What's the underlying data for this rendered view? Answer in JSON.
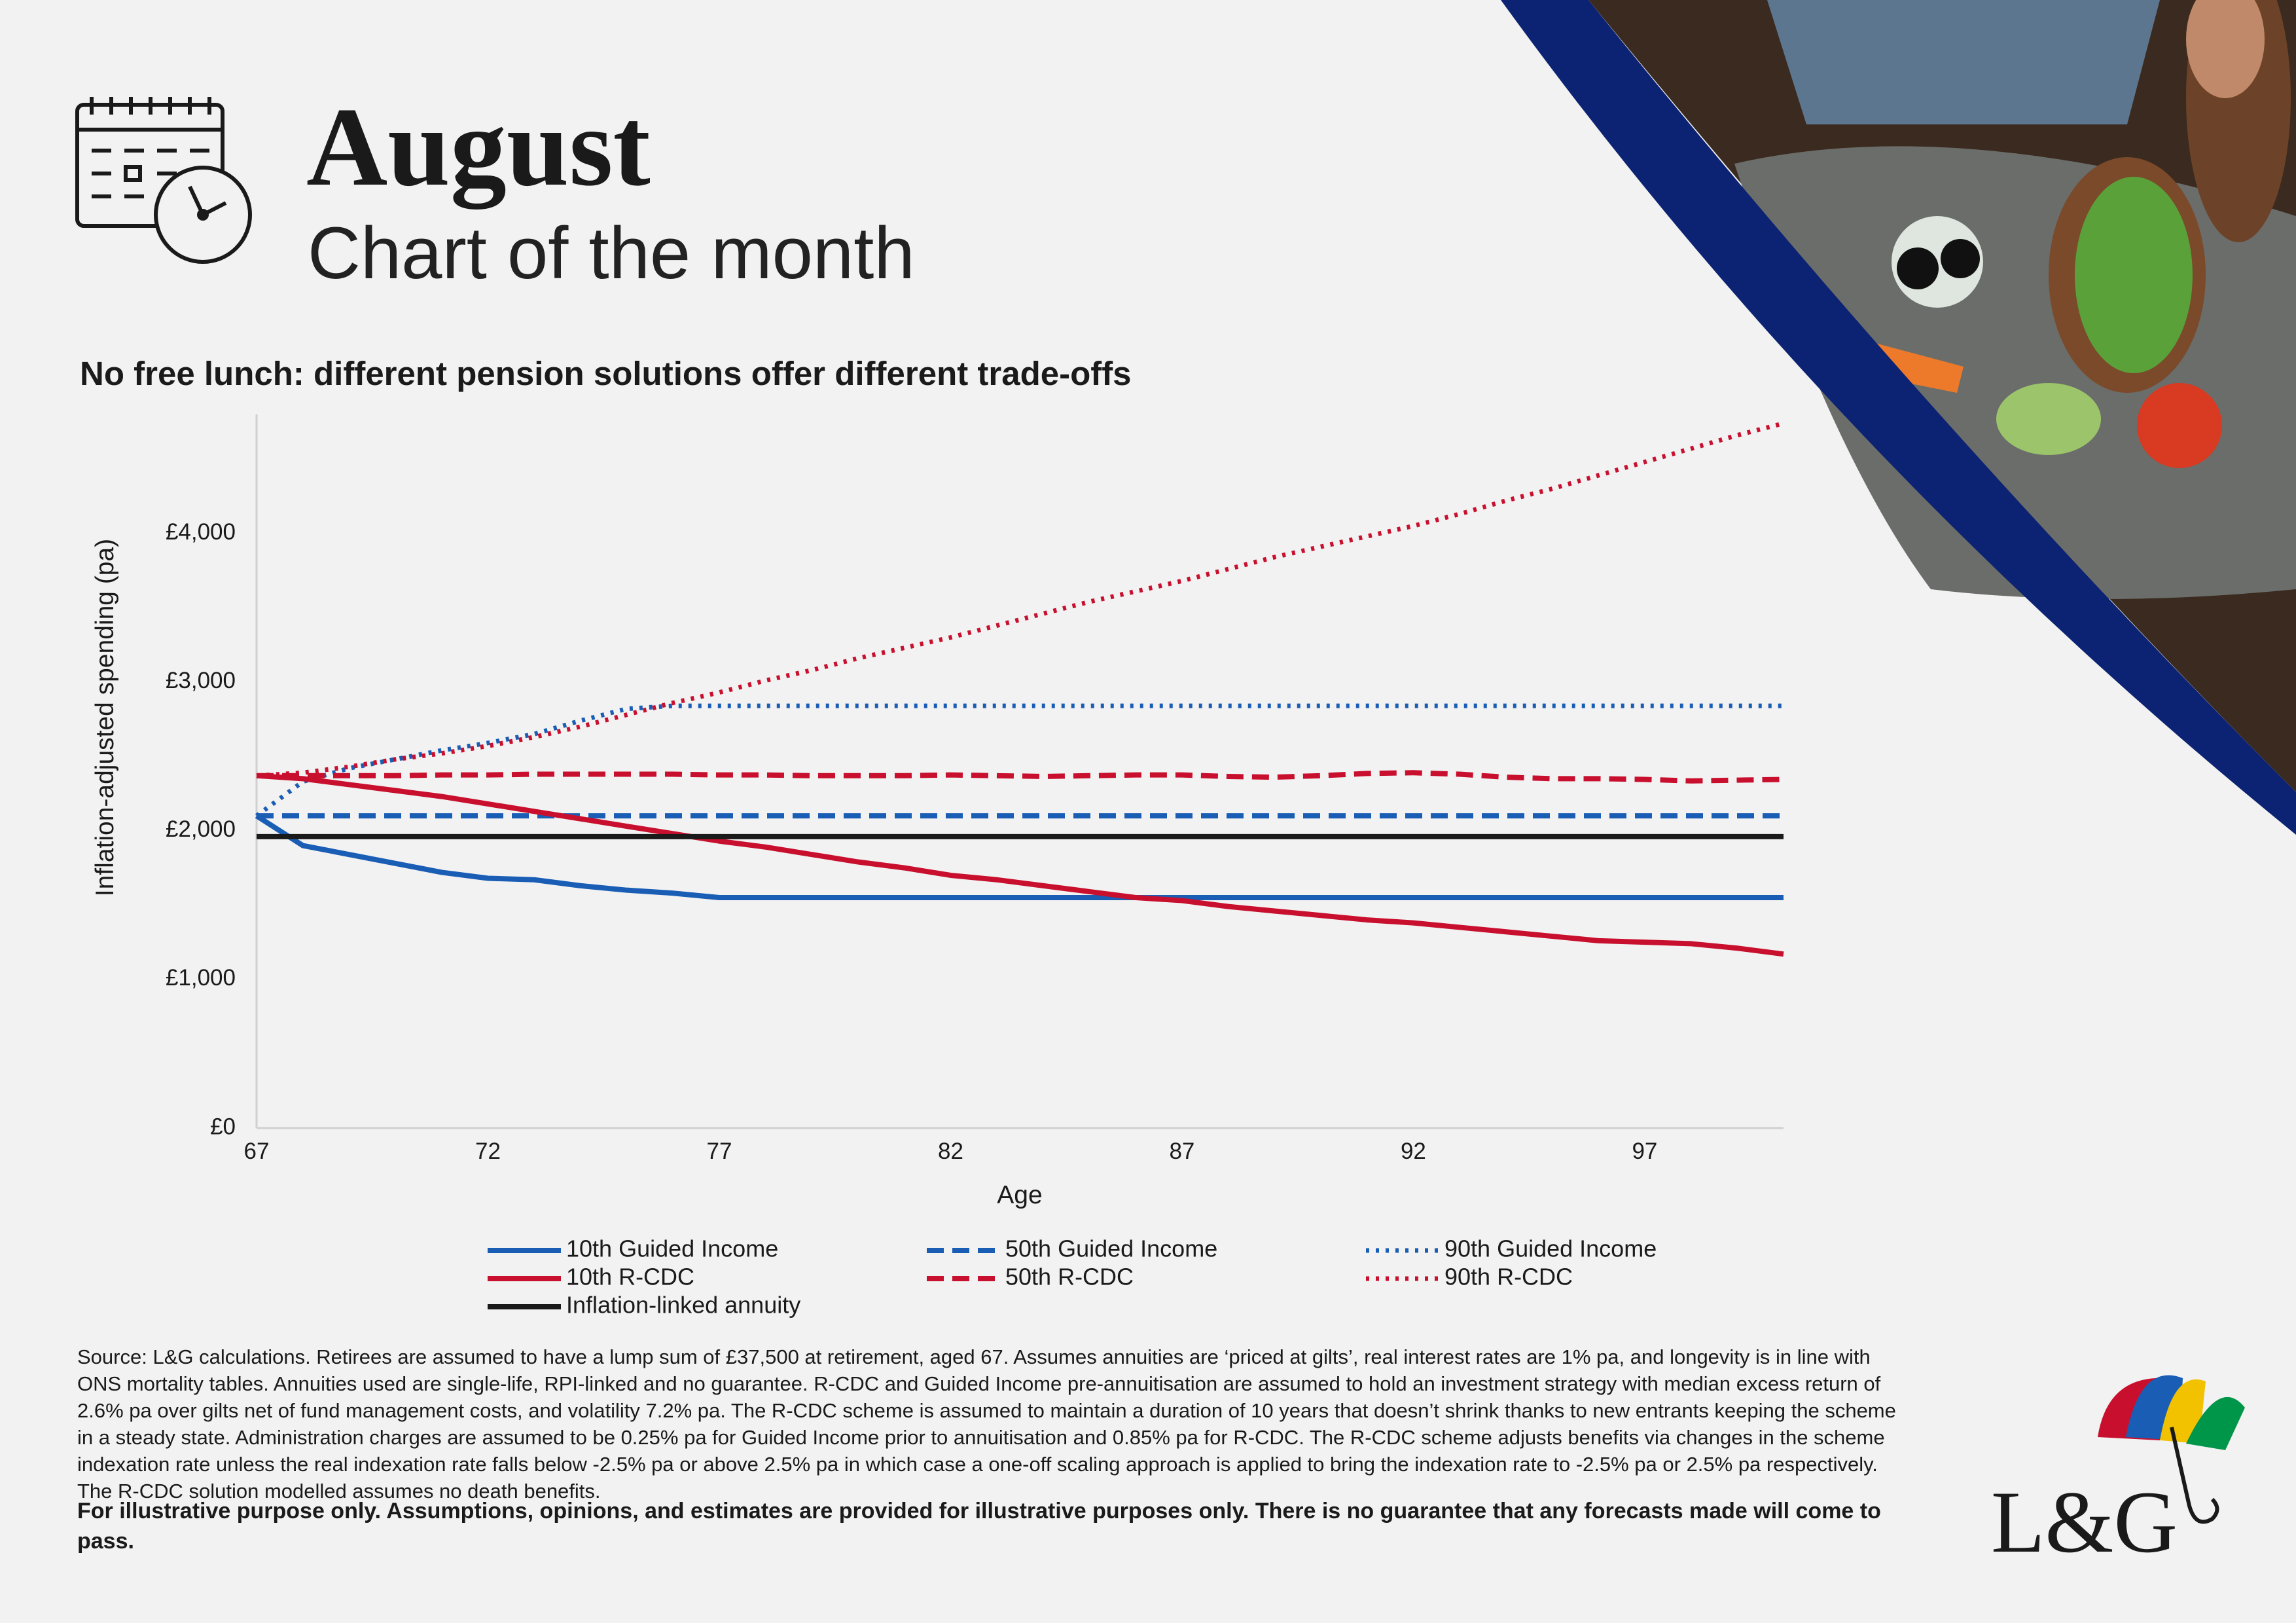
{
  "header": {
    "month": "August",
    "subtitle": "Chart of the month"
  },
  "chart_data": {
    "type": "line",
    "title": "No free lunch: different pension solutions offer different trade-offs",
    "x_label": "Age",
    "y_label": "Inflation-adjusted spending (pa)",
    "x": [
      67,
      68,
      69,
      70,
      71,
      72,
      73,
      74,
      75,
      76,
      77,
      78,
      79,
      80,
      81,
      82,
      83,
      84,
      85,
      86,
      87,
      88,
      89,
      90,
      91,
      92,
      93,
      94,
      95,
      96,
      97,
      98,
      99,
      100
    ],
    "xlim": [
      67,
      100
    ],
    "xticks": [
      67,
      72,
      77,
      82,
      87,
      92,
      97
    ],
    "ylim": [
      0,
      4800
    ],
    "yticks": [
      {
        "value": 0,
        "label": "£0"
      },
      {
        "value": 1000,
        "label": "£1,000"
      },
      {
        "value": 2000,
        "label": "£2,000"
      },
      {
        "value": 3000,
        "label": "£3,000"
      },
      {
        "value": 4000,
        "label": "£4,000"
      }
    ],
    "grid": false,
    "series": [
      {
        "name": "10th Guided Income",
        "color": "#1a5db5",
        "dash": "solid",
        "values": [
          2100,
          1900,
          1840,
          1780,
          1720,
          1680,
          1670,
          1630,
          1600,
          1580,
          1550,
          1550,
          1550,
          1550,
          1550,
          1550,
          1550,
          1550,
          1550,
          1550,
          1550,
          1550,
          1550,
          1550,
          1550,
          1550,
          1550,
          1550,
          1550,
          1550,
          1550,
          1550,
          1550,
          1550
        ]
      },
      {
        "name": "50th Guided Income",
        "color": "#1a5db5",
        "dash": "dashed",
        "values": [
          2100,
          2100,
          2100,
          2100,
          2100,
          2100,
          2100,
          2100,
          2100,
          2100,
          2100,
          2100,
          2100,
          2100,
          2100,
          2100,
          2100,
          2100,
          2100,
          2100,
          2100,
          2100,
          2100,
          2100,
          2100,
          2100,
          2100,
          2100,
          2100,
          2100,
          2100,
          2100,
          2100,
          2100
        ]
      },
      {
        "name": "90th Guided Income",
        "color": "#1a5db5",
        "dash": "dotted",
        "values": [
          2100,
          2330,
          2420,
          2480,
          2540,
          2590,
          2650,
          2740,
          2820,
          2840,
          2840,
          2840,
          2840,
          2840,
          2840,
          2840,
          2840,
          2840,
          2840,
          2840,
          2840,
          2840,
          2840,
          2840,
          2840,
          2840,
          2840,
          2840,
          2840,
          2840,
          2840,
          2840,
          2840,
          2840
        ]
      },
      {
        "name": "10th R-CDC",
        "color": "#c8102e",
        "dash": "solid",
        "values": [
          2370,
          2350,
          2310,
          2270,
          2230,
          2180,
          2130,
          2080,
          2030,
          1980,
          1930,
          1890,
          1840,
          1790,
          1750,
          1700,
          1670,
          1630,
          1590,
          1550,
          1530,
          1490,
          1460,
          1430,
          1400,
          1380,
          1350,
          1320,
          1290,
          1260,
          1250,
          1240,
          1210,
          1170
        ]
      },
      {
        "name": "50th R-CDC",
        "color": "#c8102e",
        "dash": "dashed",
        "values": [
          2370,
          2370,
          2370,
          2370,
          2375,
          2375,
          2380,
          2380,
          2380,
          2380,
          2375,
          2375,
          2370,
          2370,
          2370,
          2375,
          2370,
          2365,
          2370,
          2375,
          2375,
          2365,
          2360,
          2370,
          2385,
          2390,
          2380,
          2360,
          2350,
          2350,
          2345,
          2335,
          2340,
          2345
        ]
      },
      {
        "name": "90th R-CDC",
        "color": "#c8102e",
        "dash": "dotted",
        "values": [
          2370,
          2390,
          2430,
          2480,
          2520,
          2570,
          2630,
          2700,
          2780,
          2860,
          2930,
          3010,
          3080,
          3160,
          3230,
          3300,
          3380,
          3460,
          3540,
          3610,
          3680,
          3760,
          3840,
          3910,
          3980,
          4050,
          4130,
          4220,
          4300,
          4390,
          4480,
          4570,
          4660,
          4740
        ]
      },
      {
        "name": "Inflation-linked annuity",
        "color": "#1a1a1a",
        "dash": "solid",
        "values": [
          1960,
          1960,
          1960,
          1960,
          1960,
          1960,
          1960,
          1960,
          1960,
          1960,
          1960,
          1960,
          1960,
          1960,
          1960,
          1960,
          1960,
          1960,
          1960,
          1960,
          1960,
          1960,
          1960,
          1960,
          1960,
          1960,
          1960,
          1960,
          1960,
          1960,
          1960,
          1960,
          1960,
          1960
        ]
      }
    ]
  },
  "footnote": "Source: L&G calculations. Retirees are assumed to have a lump sum of £37,500 at retirement, aged 67. Assumes annuities are ‘priced at gilts’, real interest rates are 1% pa, and longevity is in line with ONS mortality tables. Annuities used are single-life, RPI-linked and no guarantee.  R-CDC and Guided Income pre-annuitisation are assumed to hold an investment strategy with median excess return of 2.6% pa over gilts net of fund management costs, and volatility 7.2% pa. The R-CDC scheme is assumed to maintain a duration of 10 years that doesn’t shrink thanks to new entrants keeping the scheme in a steady state. Administration charges are assumed to be 0.25% pa for Guided Income prior to annuitisation and 0.85% pa for R-CDC. The R-CDC scheme adjusts benefits via changes in the scheme indexation rate unless the real indexation rate falls below -2.5% pa or above 2.5% pa in which case a one-off scaling approach is applied to bring the indexation rate to -2.5% pa or 2.5% pa respectively. The R-CDC solution modelled assumes no death benefits.",
  "disclaimer": "For illustrative purpose only. Assumptions, opinions, and estimates are provided for illustrative purposes only. There is no guarantee that any forecasts made will come to pass.",
  "logo": "L&G"
}
